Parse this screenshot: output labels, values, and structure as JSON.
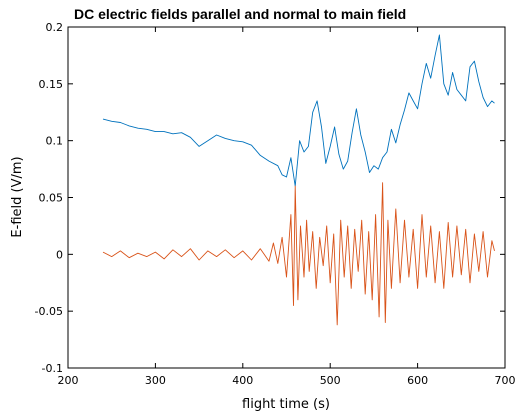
{
  "chart_data": {
    "type": "line",
    "title": "DC electric fields parallel and normal to main field",
    "xlabel": "flight time (s)",
    "ylabel": "E-field (V/m)",
    "xlim": [
      200,
      700
    ],
    "ylim": [
      -0.1,
      0.2
    ],
    "xticks": [
      200,
      300,
      400,
      500,
      600,
      700
    ],
    "xtick_labels": [
      "200",
      "300",
      "400",
      "500",
      "600",
      "700"
    ],
    "yticks": [
      -0.1,
      -0.05,
      0,
      0.05,
      0.1,
      0.15,
      0.2
    ],
    "ytick_labels": [
      "-0.1",
      "-0.05",
      "0",
      "0.05",
      "0.1",
      "0.15",
      "0.2"
    ],
    "grid": false,
    "legend": "none",
    "series": [
      {
        "color": "#0072bd",
        "x": [
          240,
          250,
          260,
          270,
          280,
          290,
          300,
          310,
          320,
          330,
          340,
          350,
          360,
          370,
          380,
          390,
          400,
          410,
          420,
          430,
          440,
          445,
          450,
          455,
          460,
          465,
          470,
          475,
          480,
          485,
          490,
          495,
          500,
          505,
          510,
          515,
          520,
          525,
          530,
          535,
          540,
          545,
          550,
          555,
          560,
          565,
          570,
          575,
          580,
          585,
          590,
          595,
          600,
          605,
          610,
          615,
          620,
          625,
          630,
          635,
          640,
          645,
          650,
          655,
          660,
          665,
          670,
          675,
          680,
          685,
          688
        ],
        "values": [
          0.119,
          0.117,
          0.116,
          0.113,
          0.111,
          0.11,
          0.108,
          0.108,
          0.106,
          0.107,
          0.103,
          0.095,
          0.1,
          0.105,
          0.102,
          0.1,
          0.099,
          0.096,
          0.087,
          0.082,
          0.078,
          0.07,
          0.068,
          0.085,
          0.06,
          0.1,
          0.09,
          0.095,
          0.125,
          0.135,
          0.112,
          0.08,
          0.095,
          0.112,
          0.088,
          0.075,
          0.082,
          0.107,
          0.128,
          0.105,
          0.09,
          0.072,
          0.078,
          0.075,
          0.085,
          0.09,
          0.11,
          0.098,
          0.114,
          0.127,
          0.142,
          0.135,
          0.128,
          0.15,
          0.168,
          0.155,
          0.175,
          0.193,
          0.15,
          0.14,
          0.16,
          0.145,
          0.14,
          0.135,
          0.165,
          0.17,
          0.152,
          0.138,
          0.13,
          0.135,
          0.133
        ]
      },
      {
        "color": "#d95319",
        "x": [
          240,
          250,
          260,
          270,
          280,
          290,
          300,
          310,
          320,
          330,
          340,
          350,
          360,
          370,
          380,
          390,
          400,
          410,
          420,
          430,
          435,
          440,
          445,
          450,
          455,
          458,
          460,
          463,
          466,
          470,
          473,
          476,
          480,
          484,
          488,
          492,
          496,
          500,
          504,
          508,
          512,
          516,
          520,
          524,
          528,
          532,
          536,
          540,
          544,
          548,
          552,
          556,
          560,
          563,
          566,
          570,
          575,
          580,
          585,
          590,
          595,
          600,
          605,
          610,
          615,
          620,
          625,
          630,
          635,
          640,
          645,
          650,
          655,
          660,
          665,
          670,
          675,
          680,
          685,
          688
        ],
        "values": [
          0.002,
          -0.002,
          0.003,
          -0.003,
          0.001,
          -0.002,
          0.002,
          -0.004,
          0.004,
          -0.002,
          0.005,
          -0.005,
          0.003,
          -0.002,
          0.004,
          -0.003,
          0.003,
          -0.005,
          0.005,
          -0.006,
          0.01,
          -0.008,
          0.015,
          -0.02,
          0.035,
          -0.045,
          0.06,
          -0.04,
          0.025,
          -0.02,
          0.03,
          -0.015,
          0.02,
          -0.03,
          0.015,
          -0.01,
          0.025,
          -0.025,
          0.018,
          -0.062,
          0.03,
          -0.02,
          0.025,
          -0.03,
          0.022,
          -0.015,
          0.03,
          -0.035,
          0.02,
          -0.04,
          0.035,
          -0.055,
          0.063,
          -0.06,
          0.03,
          -0.03,
          0.04,
          -0.025,
          0.03,
          -0.02,
          0.022,
          -0.03,
          0.035,
          -0.02,
          0.025,
          -0.025,
          0.02,
          -0.03,
          0.028,
          -0.02,
          0.025,
          -0.018,
          0.022,
          -0.025,
          0.018,
          -0.015,
          0.02,
          -0.02,
          0.012,
          0.003
        ]
      }
    ]
  }
}
